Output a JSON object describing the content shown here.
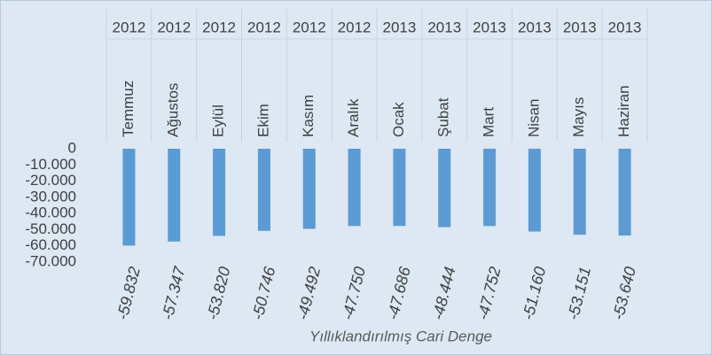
{
  "chart_data": {
    "type": "bar",
    "title": "Yıllıklandırılmış Cari Denge",
    "years": [
      "2012",
      "2012",
      "2012",
      "2012",
      "2012",
      "2012",
      "2013",
      "2013",
      "2013",
      "2013",
      "2013",
      "2013"
    ],
    "categories": [
      "Temmuz",
      "Ağustos",
      "Eylül",
      "Ekim",
      "Kasım",
      "Aralık",
      "Ocak",
      "Şubat",
      "Mart",
      "Nisan",
      "Mayıs",
      "Haziran"
    ],
    "values": [
      -59832,
      -57347,
      -53820,
      -50746,
      -49492,
      -47750,
      -47686,
      -48444,
      -47752,
      -51160,
      -53151,
      -53640
    ],
    "value_labels": [
      "-59.832",
      "-57.347",
      "-53.820",
      "-50.746",
      "-49.492",
      "-47.750",
      "-47.686",
      "-48.444",
      "-47.752",
      "-51.160",
      "-53.151",
      "-53.640"
    ],
    "color": "#5b9bd5",
    "ylim": [
      -70000,
      0
    ],
    "yticks": [
      0,
      {
        "value": -10000,
        "label": "-10.000"
      },
      {
        "value": -20000,
        "label": "-20.000"
      },
      {
        "value": -30000,
        "label": "-30.000"
      },
      {
        "value": -40000,
        "label": "-40.000"
      },
      {
        "value": -50000,
        "label": "-50.000"
      },
      {
        "value": -60000,
        "label": "-60.000"
      },
      {
        "value": -70000,
        "label": "-70.000"
      }
    ]
  }
}
